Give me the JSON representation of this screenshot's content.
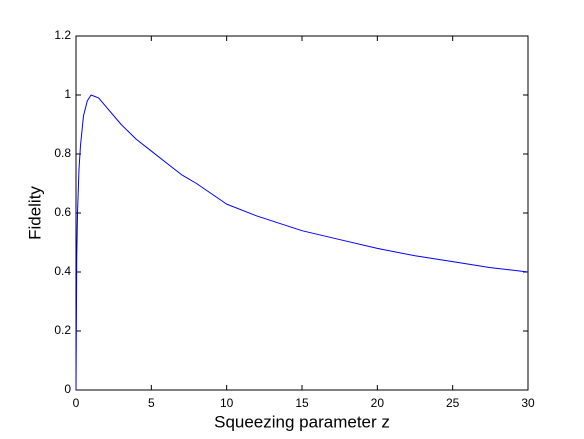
{
  "chart_data": {
    "type": "line",
    "xlabel": "Squeezing parameter z",
    "ylabel": "Fidelity",
    "x": [
      0,
      0.05,
      0.1,
      0.2,
      0.3,
      0.5,
      0.75,
      1,
      1.5,
      2,
      3,
      4,
      5,
      6,
      7,
      8,
      10,
      12,
      15,
      17.5,
      20,
      22.5,
      25,
      27.5,
      30
    ],
    "series": [
      {
        "color": "#0000ff",
        "values": [
          0,
          0.45,
          0.6,
          0.75,
          0.83,
          0.93,
          0.98,
          1,
          0.99,
          0.96,
          0.9,
          0.85,
          0.81,
          0.77,
          0.73,
          0.7,
          0.63,
          0.59,
          0.54,
          0.51,
          0.48,
          0.455,
          0.435,
          0.415,
          0.4
        ]
      }
    ],
    "xlim": [
      0,
      30
    ],
    "xticks": [
      0,
      5,
      10,
      15,
      20,
      25,
      30
    ],
    "ylim": [
      0,
      1.2
    ],
    "yticks": [
      0,
      0.2,
      0.4,
      0.6,
      0.8,
      1,
      1.2
    ],
    "grid": false
  }
}
